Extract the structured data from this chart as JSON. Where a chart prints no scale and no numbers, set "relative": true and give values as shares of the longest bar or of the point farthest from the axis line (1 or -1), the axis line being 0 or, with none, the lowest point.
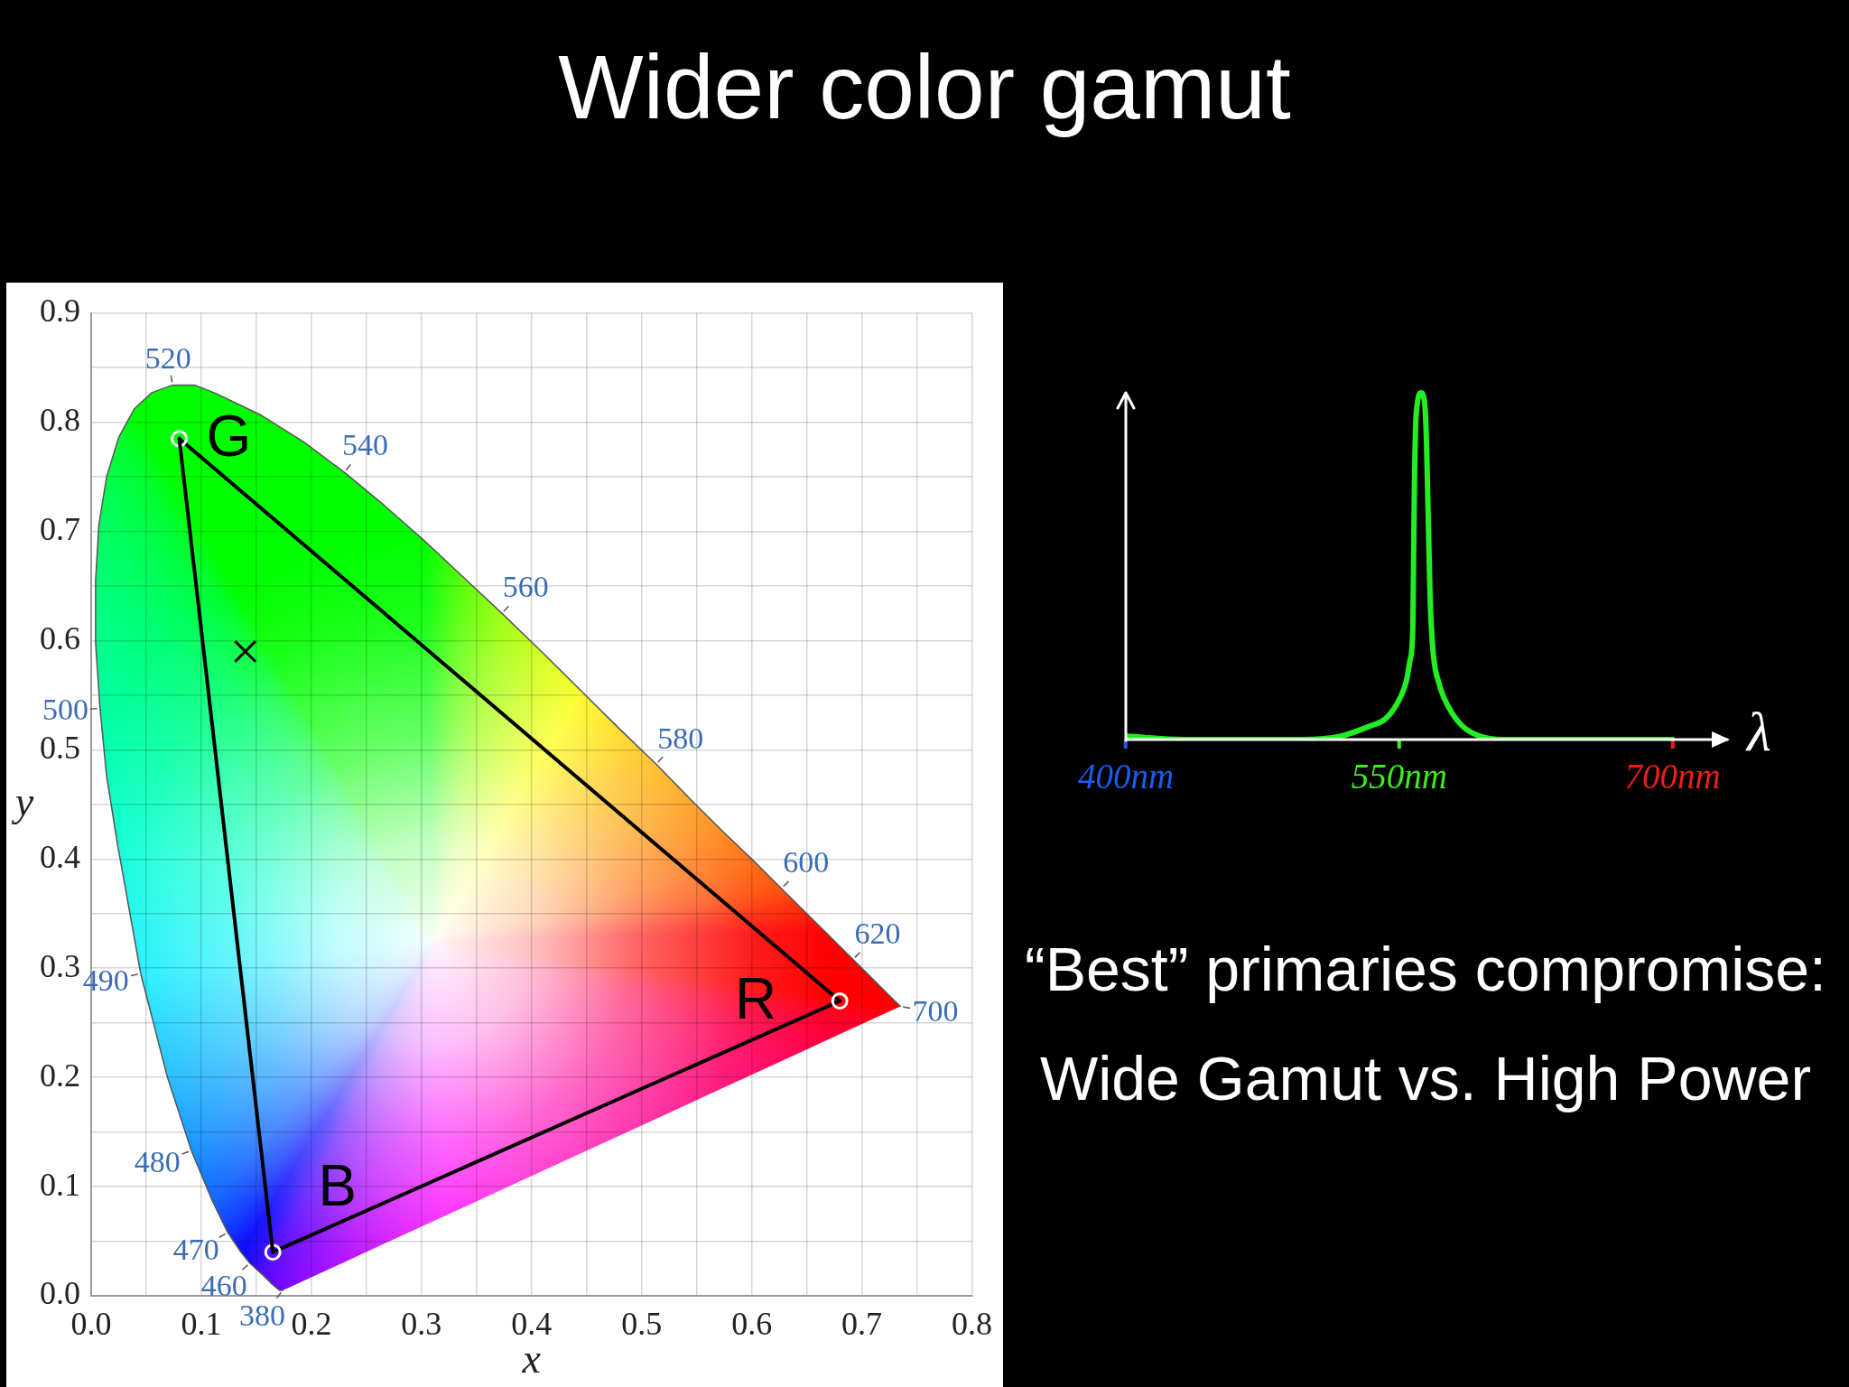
{
  "chart_data": [
    {
      "type": "line",
      "title": "Wider color gamut",
      "xlabel": "x",
      "ylabel": "y",
      "xlim": [
        0,
        0.8
      ],
      "ylim": [
        0,
        0.9
      ],
      "xticks": [
        {
          "value": 0,
          "label": "0.0"
        },
        {
          "value": 0.05,
          "label": null
        },
        0.1,
        {
          "value": 0.15,
          "label": null
        },
        0.2,
        {
          "value": 0.25,
          "label": null
        },
        0.3,
        {
          "value": 0.35,
          "label": null
        },
        0.4,
        {
          "value": 0.45,
          "label": null
        },
        0.5,
        {
          "value": 0.55,
          "label": null
        },
        0.6,
        {
          "value": 0.65,
          "label": null
        },
        0.7,
        {
          "value": 0.75,
          "label": null
        },
        0.8
      ],
      "yticks": [
        {
          "value": 0,
          "label": "0.0"
        },
        {
          "value": 0.05,
          "label": null
        },
        0.1,
        {
          "value": 0.15,
          "label": null
        },
        0.2,
        {
          "value": 0.25,
          "label": null
        },
        0.3,
        {
          "value": 0.35,
          "label": null
        },
        0.4,
        {
          "value": 0.45,
          "label": null
        },
        0.5,
        {
          "value": 0.55,
          "label": null
        },
        0.6,
        {
          "value": 0.65,
          "label": null
        },
        0.7,
        {
          "value": 0.75,
          "label": null
        },
        0.8,
        {
          "value": 0.85,
          "label": null
        },
        0.9
      ],
      "grid": true,
      "series": [
        {
          "type": "line",
          "color": "#555555",
          "marker": "none",
          "x": [
            0.174,
            0.173,
            0.171,
            0.164,
            0.157,
            0.144,
            0.136,
            0.124,
            0.11,
            0.091,
            0.069,
            0.045,
            0.024,
            0.014,
            0.008,
            0.004,
            0.004,
            0.007,
            0.014,
            0.025,
            0.039,
            0.055,
            0.074,
            0.094,
            0.114,
            0.155,
            0.193,
            0.23,
            0.266,
            0.302,
            0.337,
            0.373,
            0.409,
            0.444,
            0.479,
            0.513,
            0.545,
            0.575,
            0.603,
            0.627,
            0.666,
            0.692,
            0.708,
            0.719,
            0.73,
            0.733,
            0.735
          ],
          "values": [
            0.005,
            0.005,
            0.005,
            0.011,
            0.018,
            0.03,
            0.04,
            0.058,
            0.087,
            0.133,
            0.201,
            0.295,
            0.413,
            0.476,
            0.538,
            0.598,
            0.655,
            0.706,
            0.75,
            0.786,
            0.812,
            0.827,
            0.834,
            0.834,
            0.826,
            0.806,
            0.782,
            0.754,
            0.724,
            0.692,
            0.659,
            0.625,
            0.59,
            0.555,
            0.52,
            0.487,
            0.454,
            0.424,
            0.397,
            0.373,
            0.334,
            0.308,
            0.292,
            0.281,
            0.27,
            0.267,
            0.265
          ]
        },
        {
          "type": "line",
          "color": "#000000",
          "marker": "circle",
          "x": [
            0.08,
            0.68,
            0.165
          ],
          "values": [
            0.785,
            0.27,
            0.04
          ]
        },
        {
          "type": "line",
          "color": "#000000",
          "marker": "none",
          "x": [
            0.165,
            0.08
          ],
          "values": [
            0.04,
            0.785
          ]
        },
        {
          "type": "scatter",
          "color": "#000000",
          "marker": "cross",
          "x": [
            0.14
          ],
          "values": [
            0.59
          ]
        }
      ],
      "annotations": [
        {
          "text": "520",
          "x": 0.074,
          "y": 0.834
        },
        {
          "text": "540",
          "x": 0.23,
          "y": 0.754
        },
        {
          "text": "560",
          "x": 0.373,
          "y": 0.625
        },
        {
          "text": "580",
          "x": 0.513,
          "y": 0.487
        },
        {
          "text": "600",
          "x": 0.627,
          "y": 0.373
        },
        {
          "text": "620",
          "x": 0.692,
          "y": 0.308
        },
        {
          "text": "700",
          "x": 0.735,
          "y": 0.265
        },
        {
          "text": "500",
          "x": 0.008,
          "y": 0.538
        },
        {
          "text": "490",
          "x": 0.045,
          "y": 0.295
        },
        {
          "text": "480",
          "x": 0.091,
          "y": 0.133
        },
        {
          "text": "470",
          "x": 0.124,
          "y": 0.058
        },
        {
          "text": "460",
          "x": 0.144,
          "y": 0.03
        },
        {
          "text": "380",
          "x": 0.174,
          "y": 0.005
        },
        {
          "text": "G",
          "x": 0.08,
          "y": 0.785
        },
        {
          "text": "R",
          "x": 0.68,
          "y": 0.27
        },
        {
          "text": "B",
          "x": 0.165,
          "y": 0.04
        }
      ]
    },
    {
      "type": "line",
      "relative": true,
      "xlabel": "λ",
      "xlim": [
        400,
        730
      ],
      "xticks": [
        {
          "value": 400,
          "label": "400nm"
        },
        {
          "value": 550,
          "label": "550nm"
        },
        {
          "value": 700,
          "label": "700nm"
        }
      ],
      "color": "#22ee22",
      "x": [
        400,
        432,
        465,
        497,
        518,
        534.5,
        542.5,
        549.5,
        554,
        556,
        557.5,
        558,
        558.5,
        559,
        560,
        562,
        564,
        565,
        566,
        567,
        568.5,
        572,
        577.5,
        584.5,
        594,
        607,
        621,
        647.5,
        700
      ],
      "values": [
        0.01,
        0,
        0,
        0,
        0.01,
        0.04,
        0.06,
        0.11,
        0.17,
        0.23,
        0.32,
        0.56,
        0.78,
        0.9,
        0.97,
        1,
        0.97,
        0.86,
        0.63,
        0.41,
        0.26,
        0.16,
        0.09,
        0.04,
        0.01,
        0,
        0,
        0,
        0
      ]
    },
    {
      "type": "other",
      "annotations": [
        "“Best” primaries compromise:",
        "Wide Gamut vs. High Power"
      ]
    }
  ]
}
